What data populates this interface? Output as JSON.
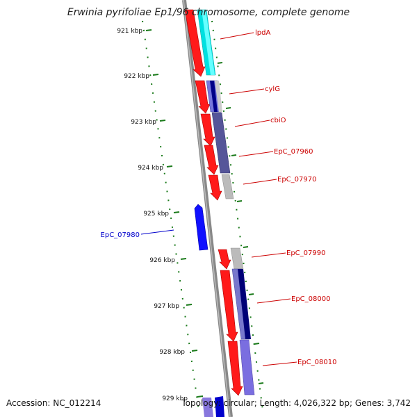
{
  "title": "Erwinia pyrifoliae Ep1/96 chromosome, complete genome",
  "accession": "Accession: NC_012214",
  "summary": "Topology: circular; Length: 4,026,322 bp; Genes: 3,742",
  "colors": {
    "backbone": "#888888",
    "tick": "#1a7a1a",
    "forward_label": "#cc0000",
    "reverse_label": "#0000cc",
    "forward_gene": "#ff0000",
    "reverse_gene": "#0000ff"
  },
  "ticks": [
    "921 kbp",
    "922 kbp",
    "923 kbp",
    "924 kbp",
    "925 kbp",
    "926 kbp",
    "927 kbp",
    "928 kbp",
    "929 kbp"
  ],
  "gene_labels": {
    "lpdA": "lpdA",
    "cylG": "cylG",
    "cbiO": "cbiO",
    "EpC_07960": "EpC_07960",
    "EpC_07970": "EpC_07970",
    "EpC_07980": "EpC_07980",
    "EpC_07990": "EpC_07990",
    "EpC_08000": "EpC_08000",
    "EpC_08010": "EpC_08010"
  }
}
